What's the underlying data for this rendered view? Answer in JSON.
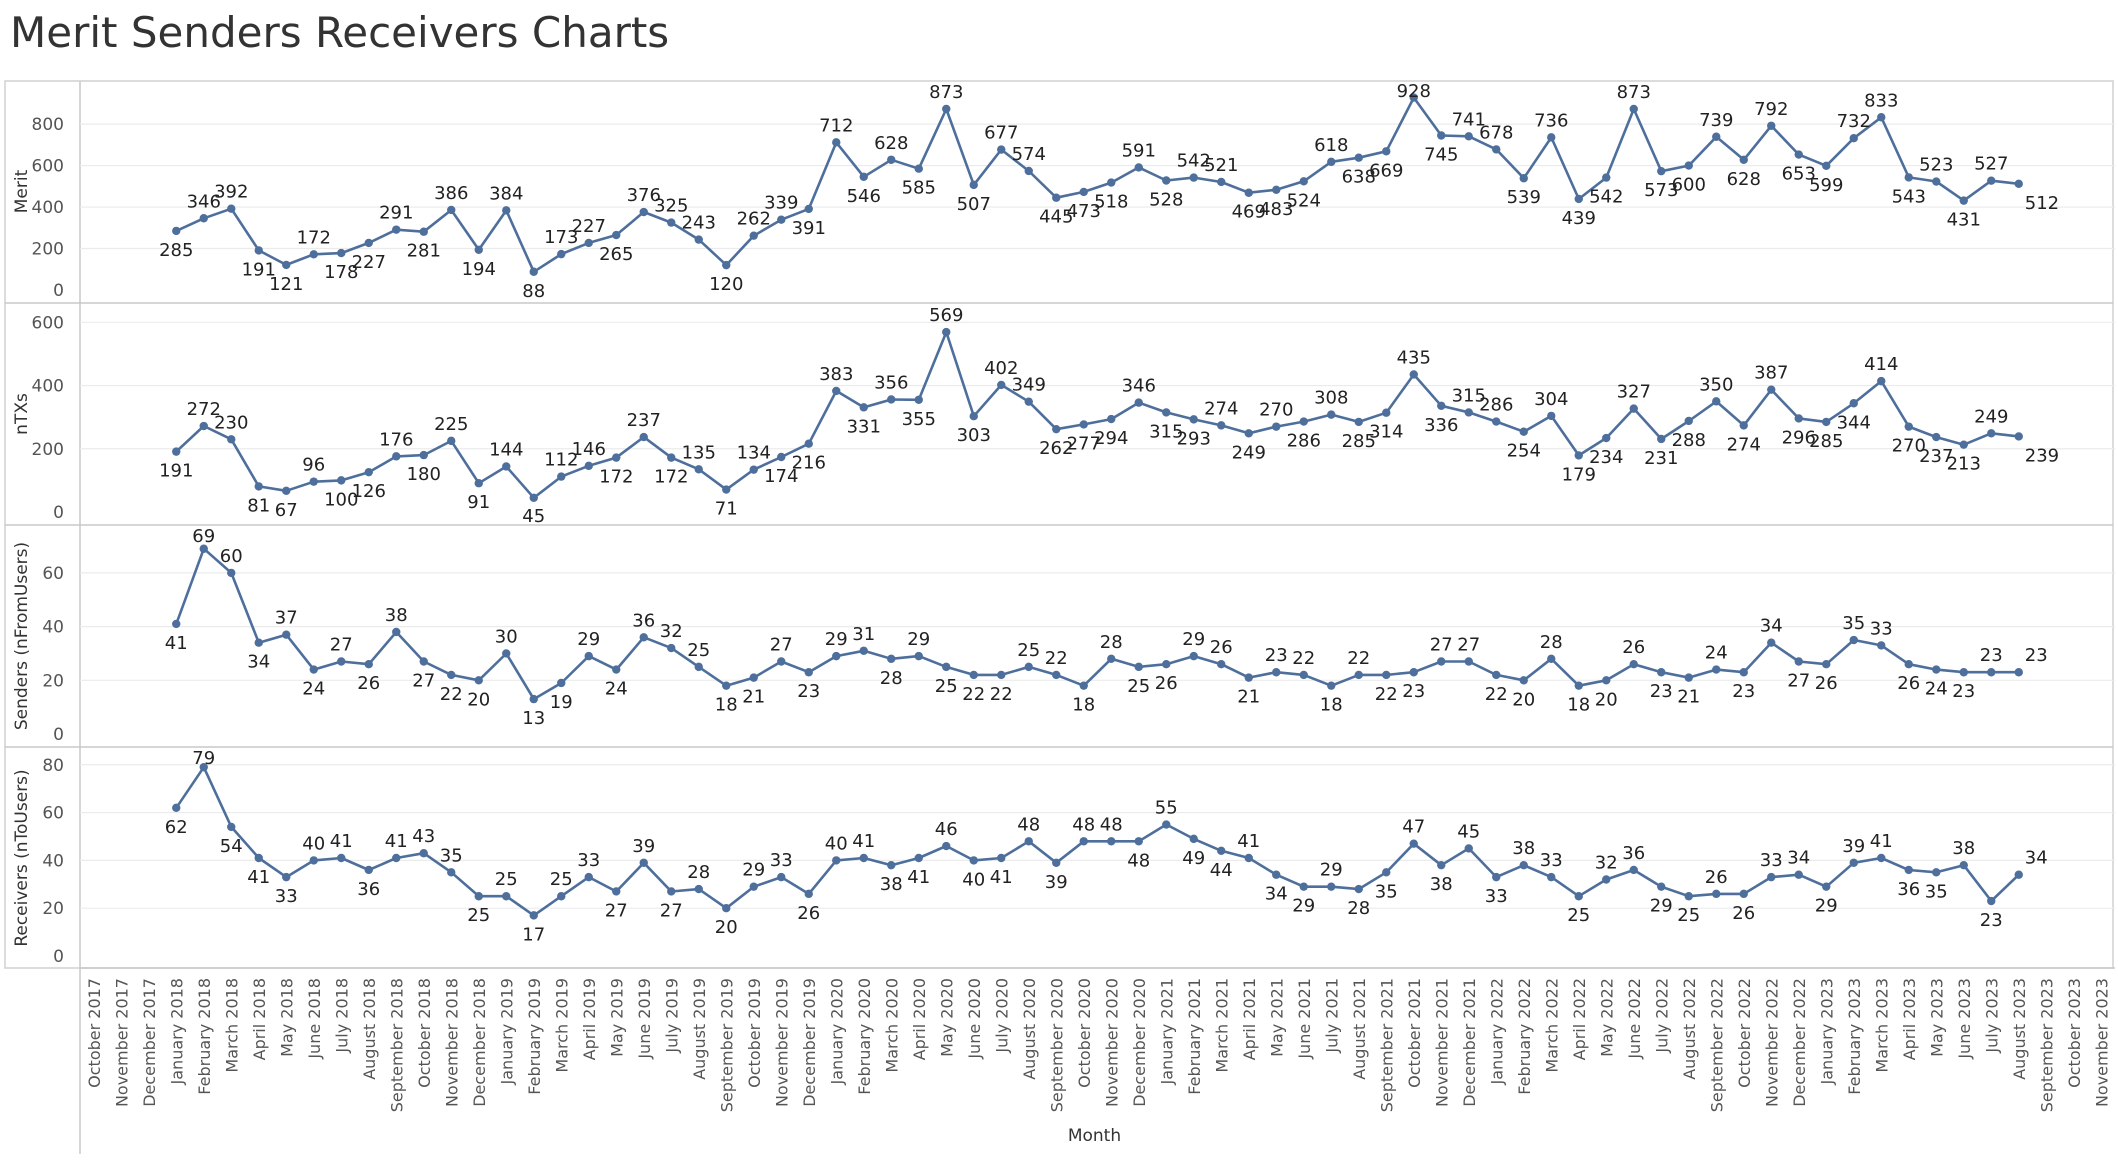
{
  "title": "Merit Senders Receivers Charts",
  "chart_data": {
    "type": "line",
    "xlabel": "Month",
    "color": "#4e6f9c",
    "categories": [
      "October 2017",
      "November 2017",
      "December 2017",
      "January 2018",
      "February 2018",
      "March 2018",
      "April 2018",
      "May 2018",
      "June 2018",
      "July 2018",
      "August 2018",
      "September 2018",
      "October 2018",
      "November 2018",
      "December 2018",
      "January 2019",
      "February 2019",
      "March 2019",
      "April 2019",
      "May 2019",
      "June 2019",
      "July 2019",
      "August 2019",
      "September 2019",
      "October 2019",
      "November 2019",
      "December 2019",
      "January 2020",
      "February 2020",
      "March 2020",
      "April 2020",
      "May 2020",
      "June 2020",
      "July 2020",
      "August 2020",
      "September 2020",
      "October 2020",
      "November 2020",
      "December 2020",
      "January 2021",
      "February 2021",
      "March 2021",
      "April 2021",
      "May 2021",
      "June 2021",
      "July 2021",
      "August 2021",
      "September 2021",
      "October 2021",
      "November 2021",
      "December 2021",
      "January 2022",
      "February 2022",
      "March 2022",
      "April 2022",
      "May 2022",
      "June 2022",
      "July 2022",
      "August 2022",
      "September 2022",
      "October 2022",
      "November 2022",
      "December 2022",
      "January 2023",
      "February 2023",
      "March 2023",
      "April 2023",
      "May 2023",
      "June 2023",
      "July 2023",
      "August 2023",
      "September 2023",
      "October 2023",
      "November 2023"
    ],
    "panels": [
      {
        "ylabel": "Merit",
        "ylim": [
          0,
          950
        ],
        "ticks": [
          0,
          200,
          400,
          600,
          800
        ],
        "values": [
          null,
          null,
          null,
          285,
          346,
          392,
          191,
          121,
          172,
          178,
          227,
          291,
          281,
          386,
          194,
          384,
          88,
          173,
          227,
          265,
          376,
          325,
          243,
          120,
          262,
          339,
          391,
          712,
          546,
          628,
          585,
          873,
          507,
          677,
          574,
          445,
          473,
          518,
          591,
          528,
          542,
          521,
          469,
          483,
          524,
          618,
          638,
          669,
          928,
          745,
          741,
          678,
          539,
          736,
          439,
          542,
          873,
          573,
          600,
          739,
          628,
          792,
          653,
          599,
          732,
          833,
          543,
          523,
          431,
          527,
          512,
          null,
          null,
          null
        ]
      },
      {
        "ylabel": "nTXs",
        "ylim": [
          0,
          620
        ],
        "ticks": [
          0,
          200,
          400,
          600
        ],
        "values": [
          null,
          null,
          null,
          191,
          272,
          230,
          81,
          67,
          96,
          100,
          126,
          176,
          180,
          225,
          91,
          144,
          45,
          112,
          146,
          172,
          237,
          172,
          135,
          71,
          134,
          174,
          216,
          383,
          331,
          356,
          355,
          569,
          303,
          402,
          349,
          262,
          277,
          294,
          346,
          315,
          293,
          274,
          249,
          270,
          286,
          308,
          285,
          314,
          435,
          336,
          315,
          286,
          254,
          304,
          179,
          234,
          327,
          231,
          288,
          350,
          274,
          387,
          296,
          285,
          344,
          414,
          270,
          237,
          213,
          249,
          239,
          null,
          null,
          null
        ]
      },
      {
        "ylabel": "Senders (nFromUsers)",
        "ylim": [
          0,
          73
        ],
        "ticks": [
          0,
          20,
          40,
          60
        ],
        "values": [
          null,
          null,
          null,
          41,
          69,
          60,
          34,
          37,
          24,
          27,
          26,
          38,
          27,
          22,
          20,
          30,
          13,
          19,
          29,
          24,
          36,
          32,
          25,
          18,
          21,
          27,
          23,
          29,
          31,
          28,
          29,
          25,
          22,
          22,
          25,
          22,
          18,
          28,
          25,
          26,
          29,
          26,
          21,
          23,
          22,
          18,
          22,
          22,
          23,
          27,
          27,
          22,
          20,
          28,
          18,
          20,
          26,
          23,
          21,
          24,
          23,
          34,
          27,
          26,
          35,
          33,
          26,
          24,
          23,
          23,
          23,
          null,
          null,
          null
        ]
      },
      {
        "ylabel": "Receivers (nToUsers)",
        "ylim": [
          0,
          82
        ],
        "ticks": [
          0,
          20,
          40,
          60,
          80
        ],
        "values": [
          null,
          null,
          null,
          62,
          79,
          54,
          41,
          33,
          40,
          41,
          36,
          41,
          43,
          35,
          25,
          25,
          17,
          25,
          33,
          27,
          39,
          27,
          28,
          20,
          29,
          33,
          26,
          40,
          41,
          38,
          41,
          46,
          40,
          41,
          48,
          39,
          48,
          48,
          48,
          55,
          49,
          44,
          41,
          34,
          29,
          29,
          28,
          35,
          47,
          38,
          45,
          33,
          38,
          33,
          25,
          32,
          36,
          29,
          25,
          26,
          26,
          33,
          34,
          29,
          39,
          41,
          36,
          35,
          38,
          23,
          34,
          null,
          null,
          null
        ]
      }
    ]
  }
}
